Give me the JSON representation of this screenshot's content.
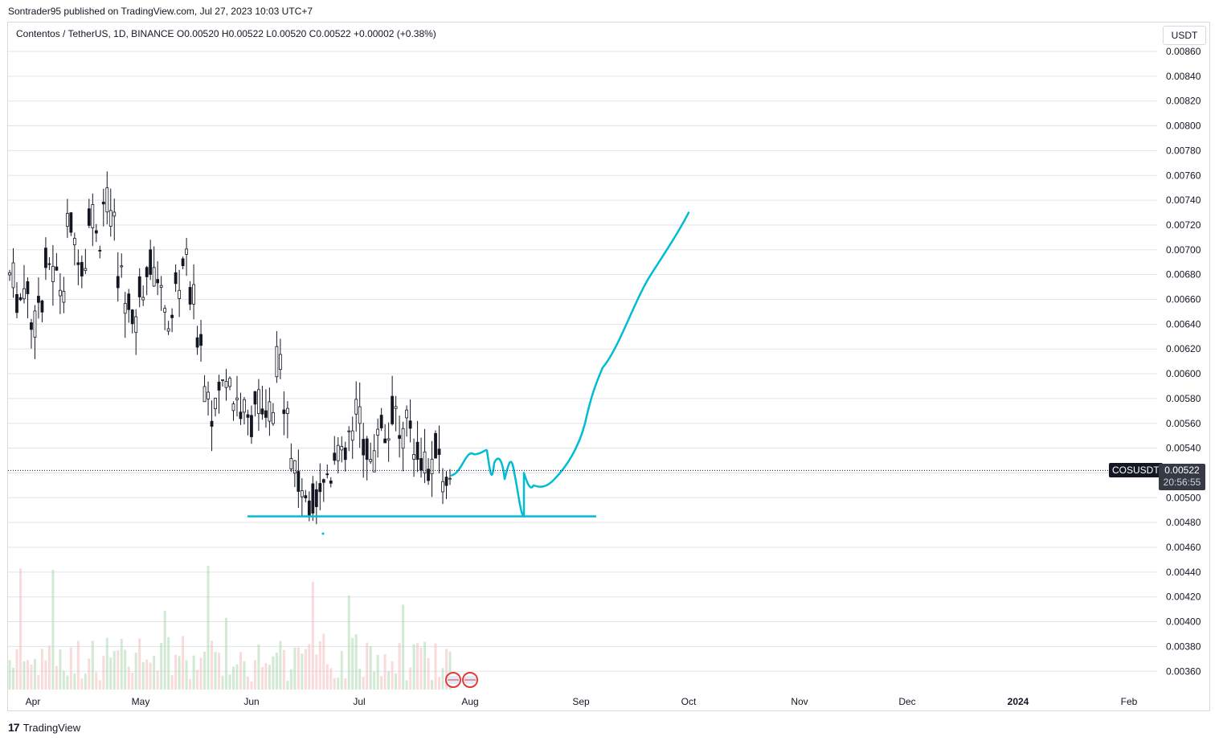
{
  "header": {
    "published_by": "Sontrader95 published on TradingView.com, Jul 27, 2023 10:03 UTC+7"
  },
  "legend": {
    "text": "Contentos / TetherUS, 1D, BINANCE  O0.00520  H0.00522  L0.00520  C0.00522  +0.00002 (+0.38%)"
  },
  "unit": "USDT",
  "price_tag": {
    "symbol": "COSUSDT",
    "price": "0.00522",
    "countdown": "20:56:55"
  },
  "footer": {
    "logo_glyph": "17",
    "brand": "TradingView"
  },
  "colors": {
    "up": "#26a69a",
    "candle": "#131722",
    "drawing": "#00bcd4",
    "volume_up": "#a5d6a7",
    "volume_down": "#f4b8b8",
    "grid": "#e0e3eb"
  },
  "chart_data": {
    "type": "candlestick",
    "title": "Contentos / TetherUS, 1D, BINANCE",
    "y_ticks": [
      "0.00860",
      "0.00840",
      "0.00820",
      "0.00800",
      "0.00780",
      "0.00760",
      "0.00740",
      "0.00720",
      "0.00700",
      "0.00680",
      "0.00660",
      "0.00640",
      "0.00620",
      "0.00600",
      "0.00580",
      "0.00560",
      "0.00540",
      "0.00520",
      "0.00500",
      "0.00480",
      "0.00460",
      "0.00440",
      "0.00420",
      "0.00400",
      "0.00380",
      "0.00360"
    ],
    "x_ticks": [
      "Apr",
      "May",
      "Jun",
      "Jul",
      "Aug",
      "Sep",
      "Oct",
      "Nov",
      "Dec",
      "2024",
      "Feb"
    ],
    "ylim": [
      0.0035,
      0.0087
    ],
    "last_price": 0.00522,
    "price_path": [
      0.0068,
      0.0066,
      0.0067,
      0.0064,
      0.0066,
      0.0069,
      0.0068,
      0.0067,
      0.0072,
      0.007,
      0.0069,
      0.0073,
      0.0071,
      0.0074,
      0.0072,
      0.0068,
      0.0066,
      0.0064,
      0.0067,
      0.0069,
      0.0068,
      0.0066,
      0.0064,
      0.0067,
      0.0069,
      0.0066,
      0.0063,
      0.0059,
      0.0057,
      0.0059,
      0.006,
      0.0058,
      0.0057,
      0.0056,
      0.0058,
      0.0056,
      0.0057,
      0.0061,
      0.0058,
      0.0053,
      0.0051,
      0.0049,
      0.005,
      0.0051,
      0.0052,
      0.0054,
      0.0053,
      0.0055,
      0.0057,
      0.0054,
      0.0053,
      0.0056,
      0.0055,
      0.0057,
      0.0055,
      0.0056,
      0.0054,
      0.0053,
      0.0052,
      0.0054,
      0.0051,
      0.00522
    ],
    "forecast_drawing": [
      [
        0.00518,
        0.0052
      ],
      [
        0.0054,
        0.00535
      ],
      [
        0.00505,
        0.00485
      ],
      [
        0.0051,
        0.00515
      ],
      [
        0.0054,
        0.0056
      ],
      [
        0.0059,
        0.0062
      ],
      [
        0.0068,
        0.0073
      ]
    ],
    "support_level": 0.00485
  }
}
